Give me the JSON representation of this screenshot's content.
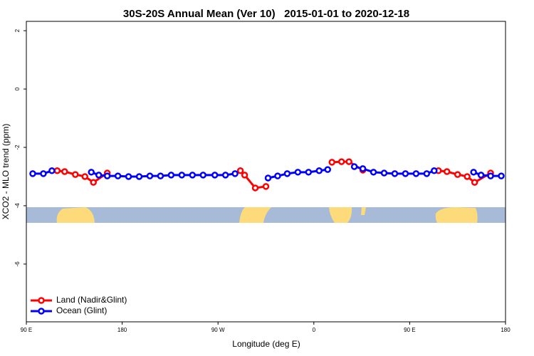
{
  "chart_data": {
    "type": "line",
    "title": "30S-20S Annual Mean (Ver 10)   2015-01-01 to 2020-12-18",
    "x_label": "Longitude (deg E)",
    "y_label": "XCO2 - MLO trend (ppm)",
    "xlim": [
      90,
      540
    ],
    "ylim": [
      -7.98,
      2.32
    ],
    "xticks": [
      {
        "value": 90,
        "label": "90 E"
      },
      180,
      {
        "value": 270,
        "label": "90 W"
      },
      {
        "value": 360,
        "label": "0"
      },
      {
        "value": 450,
        "label": "90 E"
      },
      {
        "value": 540,
        "label": "180"
      }
    ],
    "yticks": [
      2,
      0,
      -2,
      -4,
      -6
    ],
    "legend": "bottom-left",
    "series": [
      {
        "name": "Land (Nadir&Glint)",
        "color": "#ff0000",
        "x": [
          119,
          126,
          136,
          145,
          153,
          166,
          230,
          291,
          295,
          305,
          315,
          340,
          377,
          386,
          393,
          406,
          440,
          477,
          485,
          495,
          504,
          511,
          526
        ],
        "values": [
          -2.8,
          -2.83,
          -2.93,
          -3.0,
          -3.2,
          -2.88,
          null,
          -2.8,
          -2.95,
          -3.39,
          -3.34,
          null,
          -2.51,
          -2.49,
          -2.49,
          -2.78,
          null,
          -2.8,
          -2.83,
          -2.93,
          -3.0,
          -3.2,
          -2.88
        ]
      },
      {
        "name": "Ocean (Glint)",
        "color": "#0000ff",
        "x": [
          96,
          106,
          114,
          130,
          151,
          158,
          166,
          176,
          186,
          196,
          206,
          216,
          226,
          236,
          246,
          256,
          267,
          277,
          286,
          300,
          317,
          326,
          335,
          345,
          355,
          365,
          373,
          385,
          398,
          406,
          416,
          426,
          436,
          446,
          456,
          466,
          473,
          490,
          510,
          517,
          526,
          536
        ],
        "values": [
          -2.9,
          -2.9,
          -2.8,
          null,
          -2.85,
          -2.95,
          -2.98,
          -2.98,
          -3.0,
          -3.0,
          -2.98,
          -2.98,
          -2.95,
          -2.95,
          -2.95,
          -2.95,
          -2.95,
          -2.95,
          -2.9,
          null,
          -3.05,
          -2.98,
          -2.9,
          -2.85,
          -2.85,
          -2.8,
          -2.76,
          null,
          -2.66,
          -2.73,
          -2.85,
          -2.88,
          -2.9,
          -2.9,
          -2.9,
          -2.9,
          -2.8,
          null,
          -2.85,
          -2.95,
          -2.98,
          -2.98
        ]
      }
    ]
  }
}
